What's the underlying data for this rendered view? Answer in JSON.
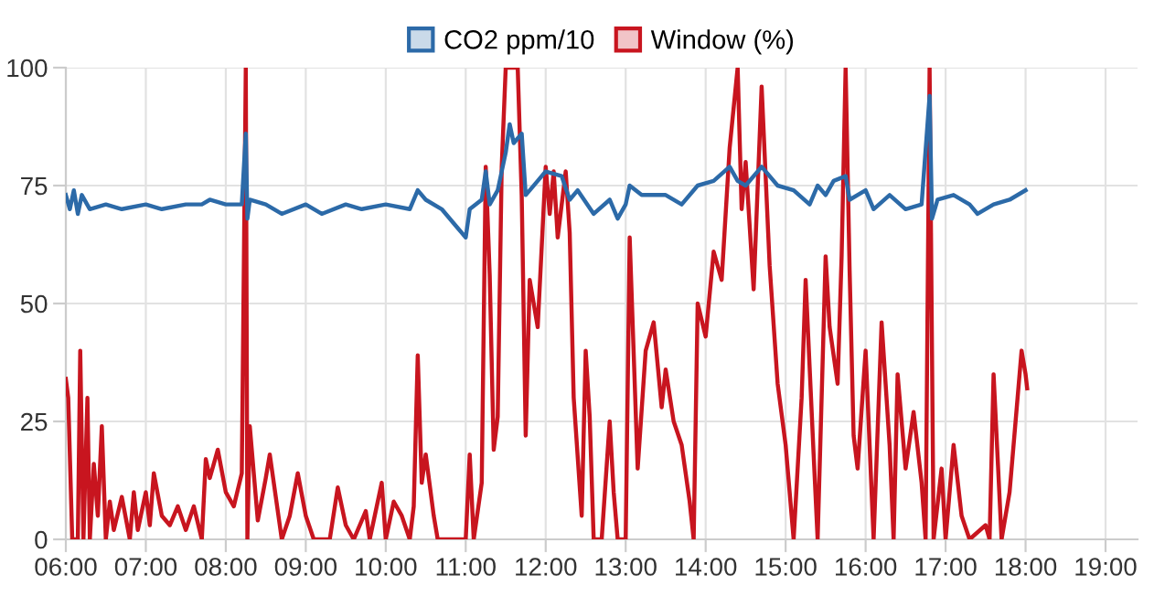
{
  "chart_data": {
    "type": "line",
    "xlim": [
      6,
      19.4
    ],
    "ylim": [
      0,
      100
    ],
    "yticks": [
      0,
      25,
      50,
      75,
      100
    ],
    "xticks": [
      {
        "value": 6,
        "label": "06:00"
      },
      {
        "value": 7,
        "label": "07:00"
      },
      {
        "value": 8,
        "label": "08:00"
      },
      {
        "value": 9,
        "label": "09:00"
      },
      {
        "value": 10,
        "label": "10:00"
      },
      {
        "value": 11,
        "label": "11:00"
      },
      {
        "value": 12,
        "label": "12:00"
      },
      {
        "value": 13,
        "label": "13:00"
      },
      {
        "value": 14,
        "label": "14:00"
      },
      {
        "value": 15,
        "label": "15:00"
      },
      {
        "value": 16,
        "label": "16:00"
      },
      {
        "value": 17,
        "label": "17:00"
      },
      {
        "value": 18,
        "label": "18:00"
      },
      {
        "value": 19,
        "label": "19:00"
      }
    ],
    "grid": true,
    "legend": "top",
    "marker": "none",
    "line_style": "solid",
    "series": [
      {
        "name": "CO2 ppm/10",
        "color": "#2c6aa8",
        "x": [
          6.0,
          6.05,
          6.1,
          6.15,
          6.2,
          6.3,
          6.5,
          6.7,
          7.0,
          7.2,
          7.5,
          7.7,
          7.8,
          8.0,
          8.2,
          8.25,
          8.27,
          8.3,
          8.5,
          8.7,
          9.0,
          9.2,
          9.5,
          9.7,
          10.0,
          10.3,
          10.4,
          10.5,
          10.7,
          10.9,
          11.0,
          11.05,
          11.2,
          11.25,
          11.3,
          11.4,
          11.5,
          11.55,
          11.6,
          11.7,
          11.75,
          11.9,
          12.0,
          12.2,
          12.3,
          12.4,
          12.6,
          12.8,
          12.9,
          13.0,
          13.05,
          13.2,
          13.5,
          13.7,
          13.9,
          14.1,
          14.3,
          14.4,
          14.5,
          14.7,
          14.9,
          15.1,
          15.3,
          15.4,
          15.5,
          15.6,
          15.75,
          15.8,
          16.0,
          16.1,
          16.3,
          16.5,
          16.7,
          16.8,
          16.83,
          16.9,
          17.1,
          17.3,
          17.4,
          17.6,
          17.8,
          18.0
        ],
        "values": [
          73,
          70,
          74,
          69,
          73,
          70,
          71,
          70,
          71,
          70,
          71,
          71,
          72,
          71,
          71,
          86,
          68,
          72,
          71,
          69,
          71,
          69,
          71,
          70,
          71,
          70,
          74,
          72,
          70,
          66,
          64,
          70,
          72,
          78,
          71,
          74,
          82,
          88,
          84,
          86,
          73,
          76,
          78,
          77,
          72,
          74,
          69,
          72,
          68,
          71,
          75,
          73,
          73,
          71,
          75,
          76,
          79,
          76,
          75,
          79,
          75,
          74,
          71,
          75,
          73,
          76,
          77,
          72,
          74,
          70,
          73,
          70,
          71,
          94,
          68,
          72,
          73,
          71,
          69,
          71,
          72,
          74
        ]
      },
      {
        "name": "Window (%)",
        "color": "#c8151f",
        "x": [
          6.0,
          6.03,
          6.08,
          6.15,
          6.18,
          6.22,
          6.27,
          6.3,
          6.35,
          6.4,
          6.45,
          6.5,
          6.55,
          6.6,
          6.7,
          6.8,
          6.85,
          6.9,
          7.0,
          7.05,
          7.1,
          7.2,
          7.3,
          7.4,
          7.5,
          7.6,
          7.7,
          7.75,
          7.8,
          7.9,
          8.0,
          8.1,
          8.2,
          8.25,
          8.27,
          8.3,
          8.4,
          8.5,
          8.55,
          8.7,
          8.8,
          8.9,
          9.0,
          9.1,
          9.3,
          9.4,
          9.5,
          9.6,
          9.75,
          9.8,
          9.95,
          10.0,
          10.1,
          10.2,
          10.3,
          10.35,
          10.4,
          10.45,
          10.5,
          10.6,
          10.65,
          11.0,
          11.05,
          11.1,
          11.2,
          11.25,
          11.3,
          11.35,
          11.4,
          11.45,
          11.5,
          11.65,
          11.7,
          11.75,
          11.8,
          11.9,
          12.0,
          12.05,
          12.1,
          12.15,
          12.25,
          12.3,
          12.35,
          12.45,
          12.5,
          12.55,
          12.6,
          12.7,
          12.8,
          12.85,
          12.9,
          13.0,
          13.05,
          13.15,
          13.25,
          13.35,
          13.45,
          13.5,
          13.6,
          13.7,
          13.8,
          13.85,
          13.9,
          14.0,
          14.1,
          14.2,
          14.3,
          14.4,
          14.45,
          14.5,
          14.6,
          14.7,
          14.8,
          14.9,
          15.0,
          15.1,
          15.2,
          15.25,
          15.35,
          15.4,
          15.5,
          15.55,
          15.65,
          15.7,
          15.75,
          15.8,
          15.85,
          15.9,
          16.0,
          16.05,
          16.1,
          16.2,
          16.3,
          16.35,
          16.4,
          16.5,
          16.6,
          16.7,
          16.75,
          16.8,
          16.85,
          16.95,
          17.0,
          17.1,
          17.2,
          17.3,
          17.5,
          17.55,
          17.6,
          17.7,
          17.8,
          17.9,
          17.95,
          18.0,
          18.02
        ],
        "values": [
          34,
          30,
          0,
          0,
          40,
          0,
          30,
          0,
          16,
          5,
          24,
          0,
          8,
          2,
          9,
          0,
          10,
          2,
          10,
          3,
          14,
          5,
          3,
          7,
          2,
          7,
          0,
          17,
          13,
          19,
          10,
          7,
          14,
          100,
          0,
          24,
          4,
          13,
          18,
          0,
          5,
          14,
          5,
          0,
          0,
          11,
          3,
          0,
          6,
          0,
          12,
          0,
          8,
          5,
          0,
          7,
          39,
          12,
          18,
          5,
          0,
          0,
          18,
          0,
          12,
          79,
          56,
          19,
          26,
          79,
          100,
          100,
          73,
          22,
          55,
          45,
          79,
          69,
          78,
          64,
          78,
          65,
          30,
          5,
          40,
          26,
          0,
          0,
          25,
          10,
          0,
          0,
          64,
          15,
          40,
          46,
          28,
          36,
          25,
          20,
          8,
          0,
          50,
          43,
          61,
          55,
          83,
          100,
          70,
          80,
          53,
          96,
          58,
          33,
          20,
          0,
          30,
          55,
          18,
          0,
          60,
          45,
          33,
          60,
          100,
          57,
          22,
          15,
          40,
          20,
          0,
          46,
          20,
          0,
          35,
          15,
          27,
          12,
          0,
          100,
          0,
          15,
          0,
          20,
          5,
          0,
          3,
          0,
          35,
          0,
          10,
          30,
          40,
          35,
          32
        ]
      }
    ]
  }
}
